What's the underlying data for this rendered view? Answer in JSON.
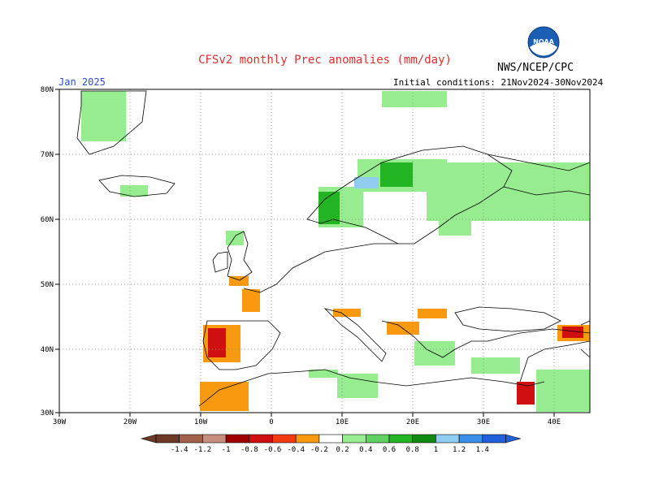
{
  "header": {
    "title": "CFSv2 monthly Prec anomalies (mm/day)",
    "agency": "NWS/NCEP/CPC",
    "logo_text": "NOAA",
    "month": "Jan 2025",
    "initial_conditions": "Initial conditions: 21Nov2024-30Nov2024"
  },
  "axes": {
    "lat_labels": [
      "80N",
      "70N",
      "60N",
      "50N",
      "40N",
      "30N"
    ],
    "lon_labels": [
      "30W",
      "20W",
      "10W",
      "0",
      "10E",
      "20E",
      "30E",
      "40E"
    ]
  },
  "colorbar": {
    "labels": [
      "-1.4",
      "-1.2",
      "-1",
      "-0.8",
      "-0.6",
      "-0.4",
      "-0.2",
      "0.2",
      "0.4",
      "0.6",
      "0.8",
      "1",
      "1.2",
      "1.4"
    ],
    "colors": [
      "#6b3a26",
      "#a0614a",
      "#c78e80",
      "#a00000",
      "#d01010",
      "#f03c10",
      "#f79a10",
      "#ffffff",
      "#98ec90",
      "#60d060",
      "#22b422",
      "#108a10",
      "#90ccf0",
      "#3a90e8",
      "#2060d8"
    ]
  },
  "colors": {
    "title": "#e03030",
    "month": "#2b4bd8"
  }
}
